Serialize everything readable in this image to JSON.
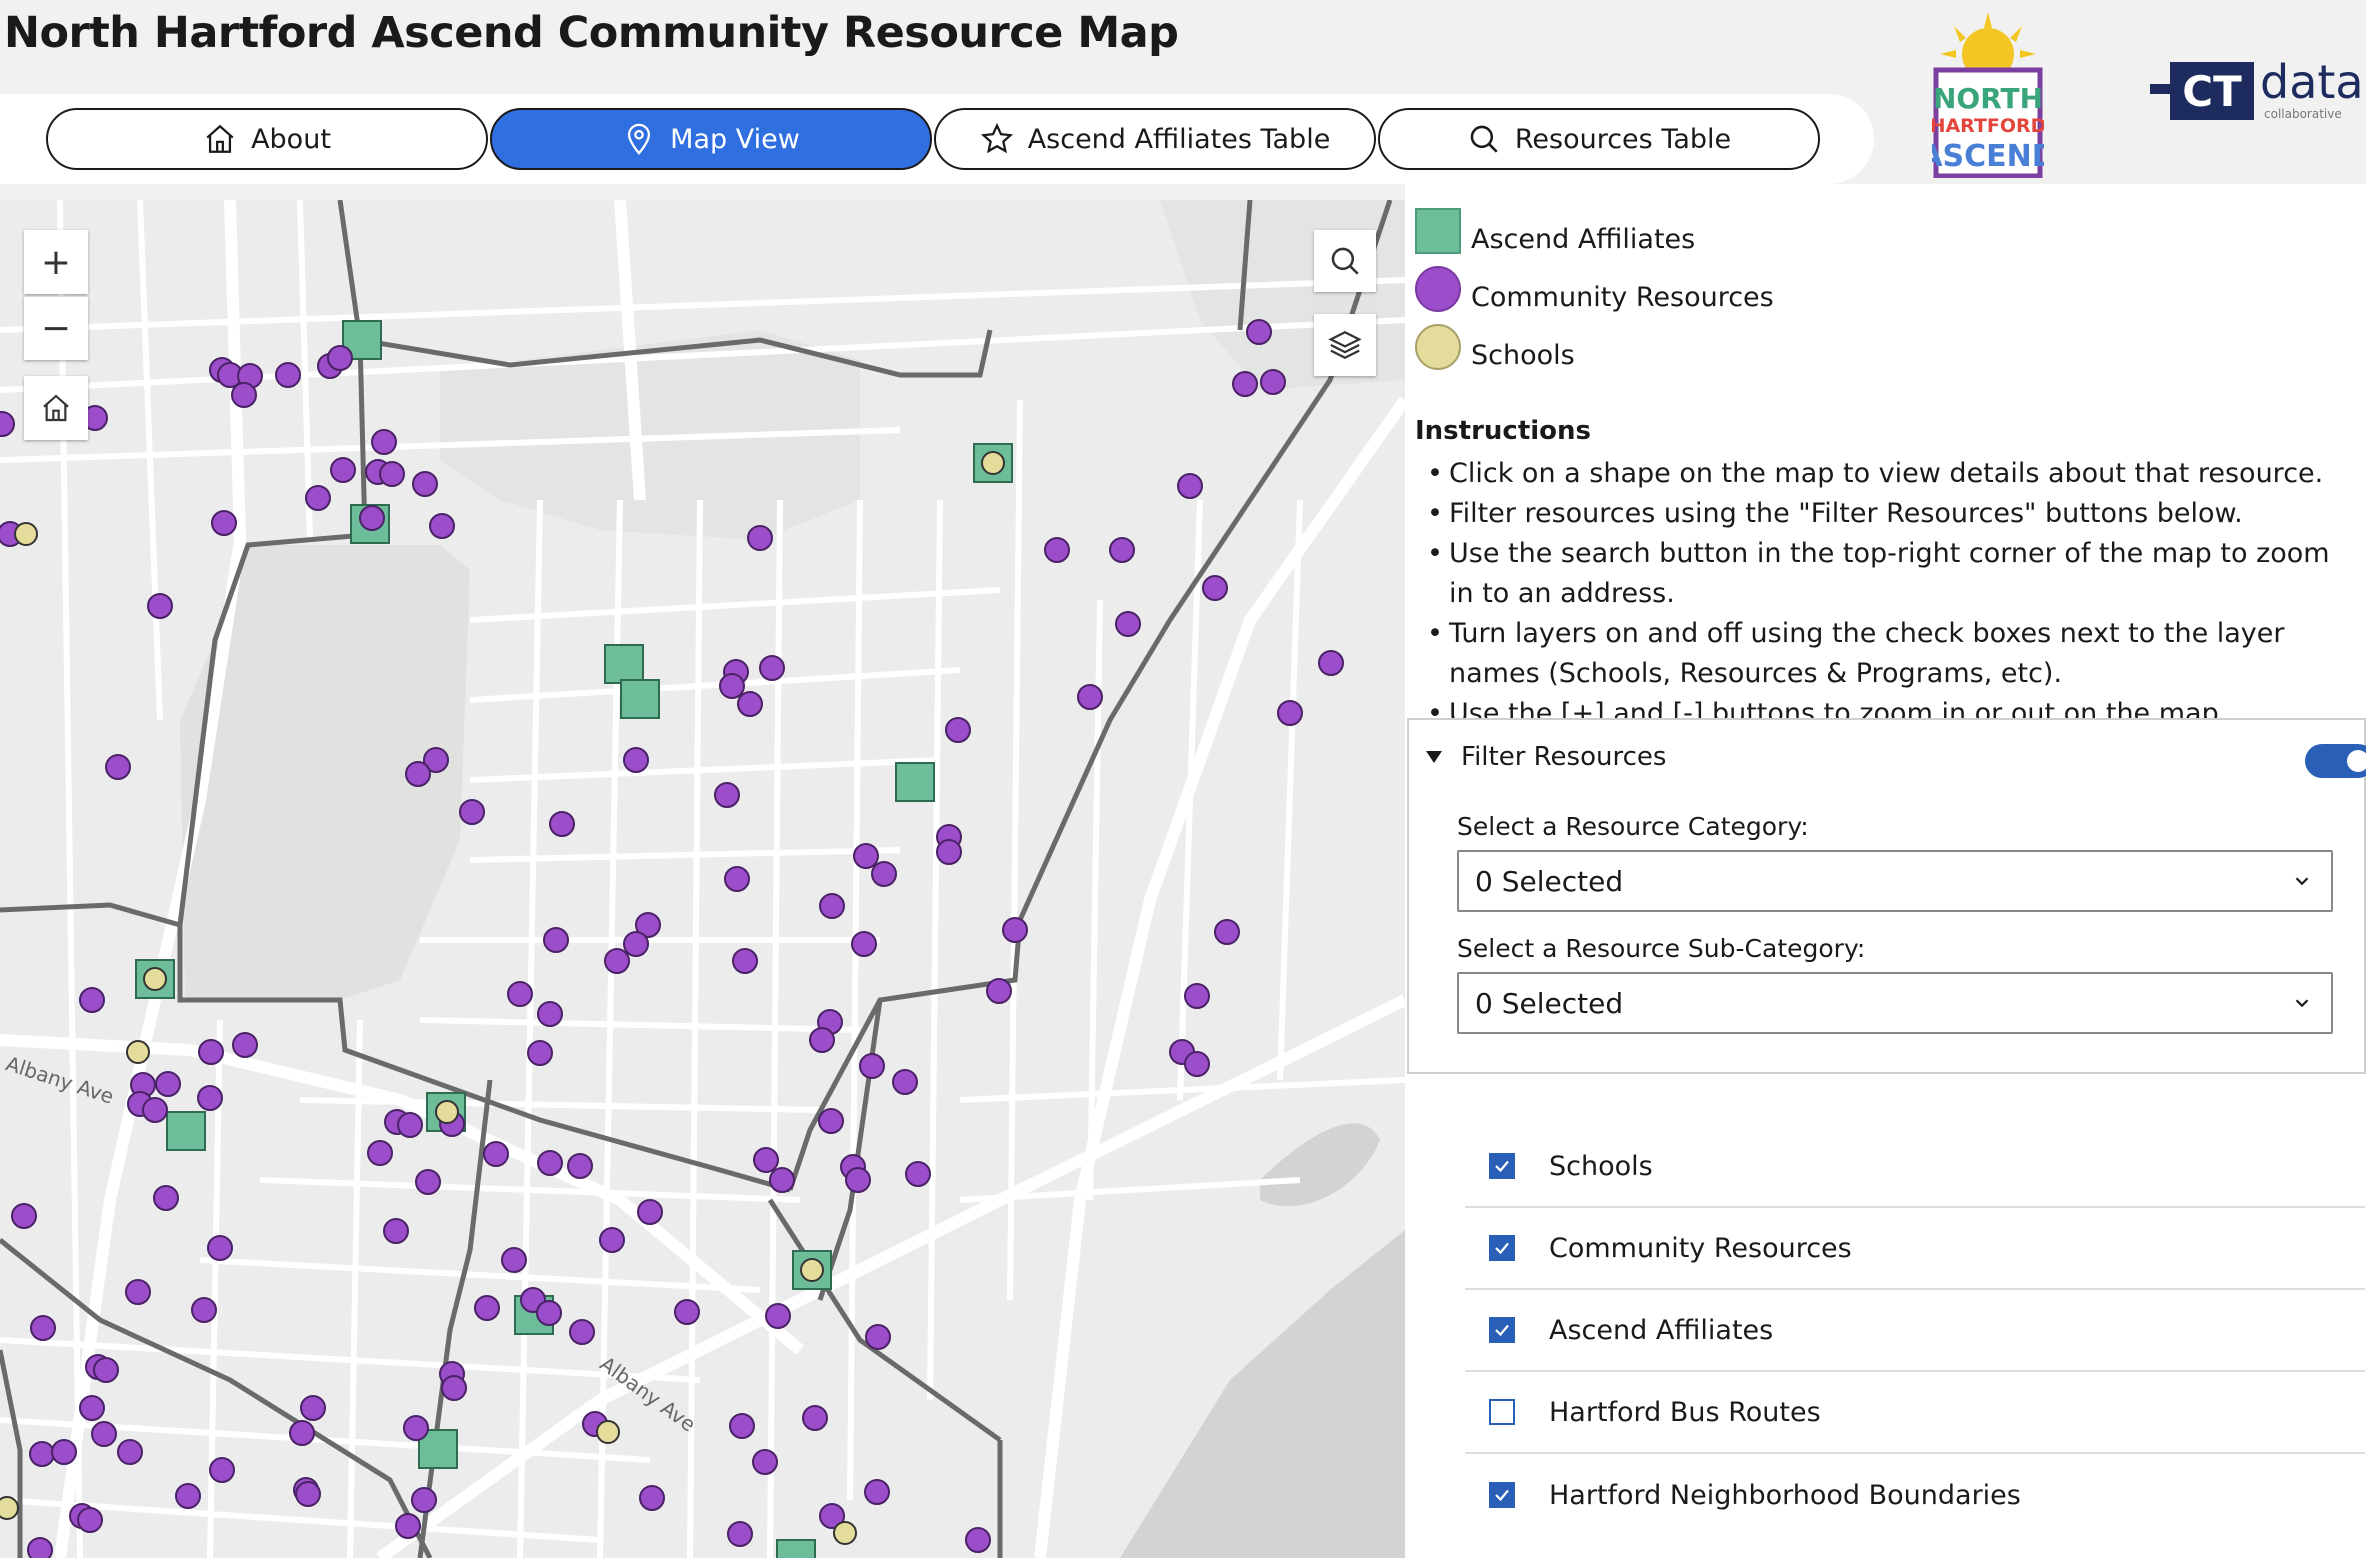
{
  "header": {
    "title": "North Hartford Ascend Community Resource Map"
  },
  "tabs": [
    {
      "label": "About",
      "icon": "home-icon",
      "active": false
    },
    {
      "label": "Map View",
      "icon": "map-pin-icon",
      "active": true
    },
    {
      "label": "Ascend Affiliates Table",
      "icon": "star-icon",
      "active": false
    },
    {
      "label": "Resources Table",
      "icon": "search-icon",
      "active": false
    }
  ],
  "logos": {
    "north_hartford": {
      "line1": "NORTH",
      "line2": "HARTFORD",
      "line3": "ASCEND"
    },
    "ctdata": {
      "mark": "CT",
      "word": "data",
      "sub": "collaborative"
    }
  },
  "map": {
    "controls": {
      "zoom_in": "+",
      "zoom_out": "−"
    },
    "street_labels": [
      "Albany Ave",
      "Albany Ave"
    ]
  },
  "legend": [
    {
      "label": "Ascend Affiliates",
      "color": "#6dbd9a",
      "shape": "square"
    },
    {
      "label": "Community Resources",
      "color": "#9b4dca",
      "shape": "circle"
    },
    {
      "label": "Schools",
      "color": "#e4dc9a",
      "shape": "circle"
    }
  ],
  "instructions": {
    "title": "Instructions",
    "items": [
      "Click on a shape on the map to view details about that resource.",
      "Filter resources using the \"Filter Resources\" buttons below.",
      "Use the search button in the top-right corner of the map to zoom in to an address.",
      "Turn layers on and off using the check boxes next to the layer names (Schools, Resources & Programs, etc).",
      "Use the [+] and [-] buttons to zoom in or out on the map."
    ]
  },
  "filter": {
    "title": "Filter Resources",
    "category_label": "Select a Resource Category:",
    "category_value": "0 Selected",
    "subcategory_label": "Select a Resource Sub-Category:",
    "subcategory_value": "0 Selected"
  },
  "layers": [
    {
      "label": "Schools",
      "checked": true
    },
    {
      "label": "Community Resources",
      "checked": true
    },
    {
      "label": "Ascend Affiliates",
      "checked": true
    },
    {
      "label": "Hartford Bus Routes",
      "checked": false
    },
    {
      "label": "Hartford Neighborhood Boundaries",
      "checked": true
    }
  ],
  "colors": {
    "accent": "#2f6fe0",
    "checkbox": "#2a5fb8",
    "resource": "#9b4dca",
    "affiliate": "#6dbd9a",
    "school": "#e4dc9a"
  }
}
